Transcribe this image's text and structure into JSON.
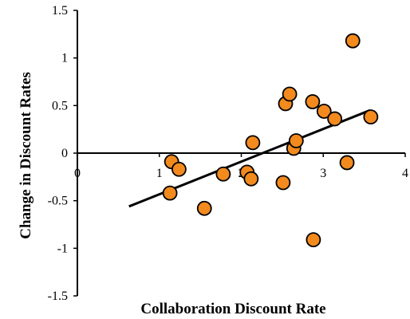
{
  "chart_data": {
    "type": "scatter",
    "title": "",
    "xlabel": "Collaboration Discount Rate",
    "ylabel": "Change in Discount Rates",
    "xlim": [
      0,
      4
    ],
    "ylim": [
      -1.5,
      1.5
    ],
    "x_ticks": [
      "0",
      "1",
      "2",
      "3",
      "4"
    ],
    "y_ticks": [
      "1.5",
      "1",
      "0.5",
      "0",
      "-0.5",
      "-1",
      "-1.5"
    ],
    "grid": false,
    "legend": "none",
    "colors": {
      "marker_fill": "#f28a1e",
      "marker_stroke": "#000000",
      "trendline": "#000000",
      "axis": "#000000"
    },
    "series": [
      {
        "points": [
          [
            1.13,
            -0.42
          ],
          [
            1.15,
            -0.09
          ],
          [
            1.24,
            -0.17
          ],
          [
            1.55,
            -0.58
          ],
          [
            1.78,
            -0.22
          ],
          [
            2.07,
            -0.2
          ],
          [
            2.12,
            -0.27
          ],
          [
            2.14,
            0.11
          ],
          [
            2.51,
            -0.31
          ],
          [
            2.54,
            0.52
          ],
          [
            2.59,
            0.62
          ],
          [
            2.64,
            0.05
          ],
          [
            2.67,
            0.13
          ],
          [
            2.87,
            0.54
          ],
          [
            2.88,
            -0.91
          ],
          [
            3.01,
            0.44
          ],
          [
            3.14,
            0.36
          ],
          [
            3.29,
            -0.1
          ],
          [
            3.36,
            1.18
          ],
          [
            3.58,
            0.38
          ]
        ]
      }
    ],
    "trendline": {
      "type": "linear",
      "from": [
        0.63,
        -0.56
      ],
      "to": [
        3.57,
        0.45
      ]
    }
  }
}
